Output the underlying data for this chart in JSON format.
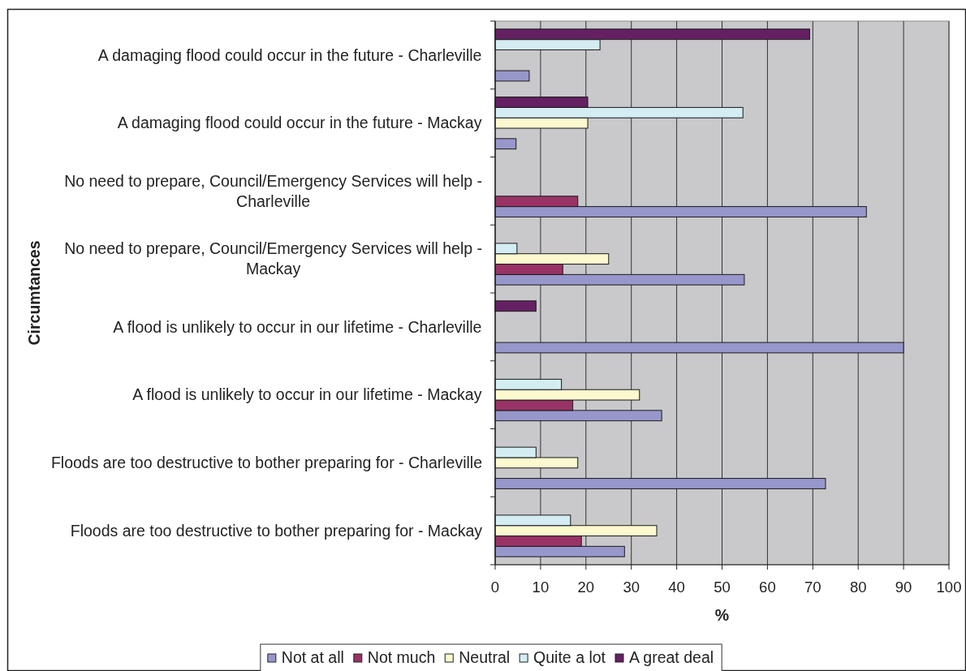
{
  "chart_data": {
    "type": "bar",
    "orientation": "horizontal",
    "categories": [
      "A damaging flood could occur in the future - Charleville",
      "A damaging flood could occur in the future - Mackay",
      "No need to prepare, Council/Emergency Services will help - Charleville",
      "No need to prepare, Council/Emergency Services will help - Mackay",
      "A flood is unlikely to occur in our lifetime - Charleville",
      "A flood is unlikely to occur in our lifetime - Mackay",
      "Floods are too destructive to bother preparing for - Charleville",
      "Floods are too destructive to bother preparing for - Mackay"
    ],
    "series": [
      {
        "name": "Not at all",
        "color": "#9797cc",
        "values": [
          7.5,
          4.6,
          81.8,
          54.9,
          90,
          36.7,
          72.8,
          28.5
        ]
      },
      {
        "name": "Not much",
        "color": "#993366",
        "values": [
          null,
          null,
          18.2,
          14.9,
          null,
          17.1,
          null,
          19.0
        ]
      },
      {
        "name": "Neutral",
        "color": "#fdf9cf",
        "values": [
          null,
          20.4,
          null,
          25.0,
          null,
          31.8,
          18.2,
          35.6
        ]
      },
      {
        "name": "Quite a lot",
        "color": "#d3edf3",
        "values": [
          23.1,
          54.6,
          null,
          4.8,
          null,
          14.6,
          9.0,
          16.6
        ]
      },
      {
        "name": "A great deal",
        "color": "#642063",
        "values": [
          69.3,
          20.4,
          null,
          null,
          9.0,
          null,
          null,
          null
        ]
      }
    ],
    "xlim": [
      0,
      100
    ],
    "xticks": [
      0,
      10,
      20,
      30,
      40,
      50,
      60,
      70,
      80,
      90,
      100
    ],
    "xlabel": "%",
    "ylabel": "Circumtances",
    "grid": "x",
    "legend": "bottom"
  }
}
